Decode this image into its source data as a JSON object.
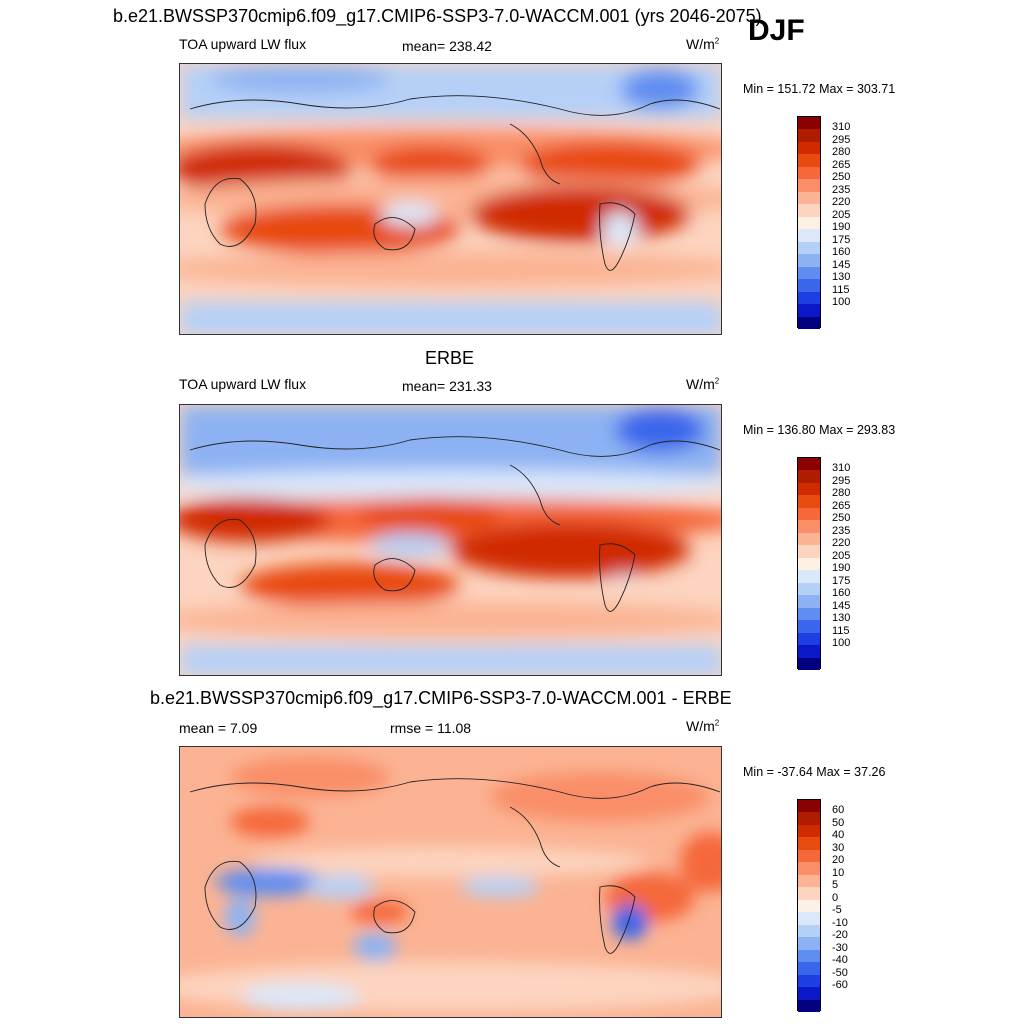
{
  "header": {
    "main_title": "b.e21.BWSSP370cmip6.f09_g17.CMIP6-SSP3-7.0-WACCM.001 (yrs 2046-2075)",
    "season": "DJF"
  },
  "panels": [
    {
      "title": "",
      "left": "TOA upward LW flux",
      "center": "mean= 238.42",
      "units": "W/m",
      "units_exp": "2",
      "minmax": "Min = 151.72 Max = 303.71",
      "colorbar_labels": [
        "310",
        "295",
        "280",
        "265",
        "250",
        "235",
        "220",
        "205",
        "190",
        "175",
        "160",
        "145",
        "130",
        "115",
        "100"
      ],
      "colorbar_colors": [
        "#8b0000",
        "#b01c00",
        "#d02a00",
        "#e84a10",
        "#f5683a",
        "#f98e68",
        "#fbb393",
        "#fcd4bf",
        "#fdf0e4",
        "#dbe8fa",
        "#b5d0f7",
        "#8cb2f3",
        "#5f8ef0",
        "#3a66eb",
        "#1d3ee2",
        "#0a18c8",
        "#000080"
      ]
    },
    {
      "title": "ERBE",
      "left": "TOA upward LW flux",
      "center": "mean= 231.33",
      "units": "W/m",
      "units_exp": "2",
      "minmax": "Min = 136.80 Max = 293.83",
      "colorbar_labels": [
        "310",
        "295",
        "280",
        "265",
        "250",
        "235",
        "220",
        "205",
        "190",
        "175",
        "160",
        "145",
        "130",
        "115",
        "100"
      ],
      "colorbar_colors": [
        "#8b0000",
        "#b01c00",
        "#d02a00",
        "#e84a10",
        "#f5683a",
        "#f98e68",
        "#fbb393",
        "#fcd4bf",
        "#fdf0e4",
        "#dbe8fa",
        "#b5d0f7",
        "#8cb2f3",
        "#5f8ef0",
        "#3a66eb",
        "#1d3ee2",
        "#0a18c8",
        "#000080"
      ]
    },
    {
      "title": "b.e21.BWSSP370cmip6.f09_g17.CMIP6-SSP3-7.0-WACCM.001 - ERBE",
      "left": "mean =   7.09",
      "center": "rmse =  11.08",
      "units": "W/m",
      "units_exp": "2",
      "minmax": "Min = -37.64 Max =  37.26",
      "colorbar_labels": [
        "60",
        "50",
        "40",
        "30",
        "20",
        "10",
        "5",
        "0",
        "-5",
        "-10",
        "-20",
        "-30",
        "-40",
        "-50",
        "-60"
      ],
      "colorbar_colors": [
        "#8b0000",
        "#b01c00",
        "#d02a00",
        "#e84a10",
        "#f5683a",
        "#f98e68",
        "#fbb393",
        "#fcd4bf",
        "#fdf0e4",
        "#dbe8fa",
        "#b5d0f7",
        "#8cb2f3",
        "#5f8ef0",
        "#3a66eb",
        "#1d3ee2",
        "#0a18c8",
        "#000080"
      ]
    }
  ]
}
